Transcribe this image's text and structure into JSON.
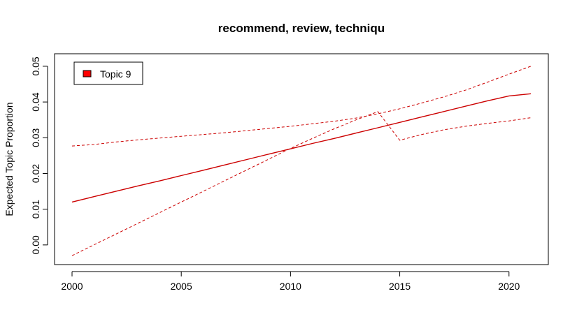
{
  "chart_data": {
    "type": "line",
    "title": "recommend, review, techniqu",
    "xlabel": "",
    "ylabel": "Expected Topic Proportion",
    "xlim": [
      1999.2,
      2021.8
    ],
    "ylim": [
      -0.0055,
      0.0535
    ],
    "xticks": [
      2000,
      2005,
      2010,
      2015,
      2020
    ],
    "yticks": [
      0.0,
      0.01,
      0.02,
      0.03,
      0.04,
      0.05
    ],
    "ytick_labels": [
      "0.00",
      "0.01",
      "0.02",
      "0.03",
      "0.04",
      "0.05"
    ],
    "grid": false,
    "legend": {
      "position": "top-left",
      "entries": [
        {
          "label": "Topic 9",
          "color": "#ff0000"
        }
      ]
    },
    "series": [
      {
        "name": "Topic 9",
        "style": "solid",
        "color": "#cc0000",
        "x": [
          2000,
          2001,
          2002,
          2003,
          2004,
          2005,
          2006,
          2007,
          2008,
          2009,
          2010,
          2011,
          2012,
          2013,
          2014,
          2015,
          2016,
          2017,
          2018,
          2019,
          2020,
          2021
        ],
        "y": [
          0.012,
          0.0135,
          0.015,
          0.0165,
          0.0179,
          0.0194,
          0.0209,
          0.0224,
          0.0239,
          0.0254,
          0.0269,
          0.0284,
          0.0298,
          0.0313,
          0.0328,
          0.0343,
          0.0358,
          0.0373,
          0.0388,
          0.0403,
          0.0417,
          0.0423
        ]
      },
      {
        "style": "dashed",
        "color": "#cc0000",
        "x": [
          2000,
          2001,
          2002,
          2003,
          2004,
          2005,
          2006,
          2007,
          2008,
          2009,
          2010,
          2011,
          2012,
          2013,
          2014,
          2015,
          2016,
          2017,
          2018,
          2019,
          2020,
          2021
        ],
        "y": [
          0.0277,
          0.0281,
          0.0288,
          0.0294,
          0.0299,
          0.0304,
          0.0309,
          0.0314,
          0.032,
          0.0326,
          0.0332,
          0.0339,
          0.0346,
          0.0355,
          0.0367,
          0.0381,
          0.0397,
          0.0414,
          0.0433,
          0.0455,
          0.0478,
          0.05
        ]
      },
      {
        "style": "dashed",
        "color": "#cc0000",
        "x": [
          2000,
          2001,
          2002,
          2003,
          2004,
          2005,
          2006,
          2007,
          2008,
          2009,
          2010,
          2011,
          2012,
          2013,
          2014,
          2015,
          2016,
          2017,
          2018,
          2019,
          2020,
          2021
        ],
        "y": [
          -0.003,
          0.0,
          0.003,
          0.006,
          0.009,
          0.012,
          0.015,
          0.018,
          0.021,
          0.024,
          0.027,
          0.0298,
          0.0325,
          0.035,
          0.0373,
          0.0293,
          0.0309,
          0.0322,
          0.0332,
          0.034,
          0.0347,
          0.0356
        ]
      }
    ]
  }
}
